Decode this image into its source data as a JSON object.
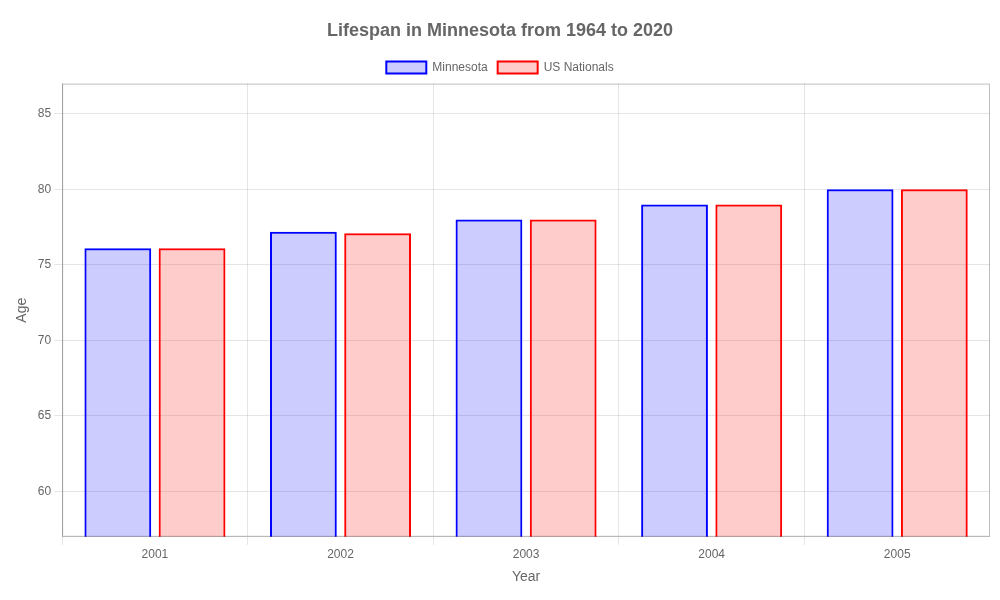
{
  "chart_data": {
    "type": "bar",
    "title": "Lifespan in Minnesota from 1964 to 2020",
    "x_label": "Year",
    "y_label": "Age",
    "categories": [
      "2001",
      "2002",
      "2003",
      "2004",
      "2005"
    ],
    "series": [
      {
        "name": "Minnesota",
        "color": "#0000ff",
        "values": [
          76.1,
          77.2,
          78.0,
          79.0,
          80.0
        ]
      },
      {
        "name": "US Nationals",
        "color": "#ff0000",
        "values": [
          76.1,
          77.1,
          78.0,
          79.0,
          80.0
        ]
      }
    ],
    "ylim": [
      57,
      87
    ],
    "yticks": [
      60,
      65,
      70,
      75,
      80,
      85
    ],
    "grid": true,
    "legend": "top"
  }
}
